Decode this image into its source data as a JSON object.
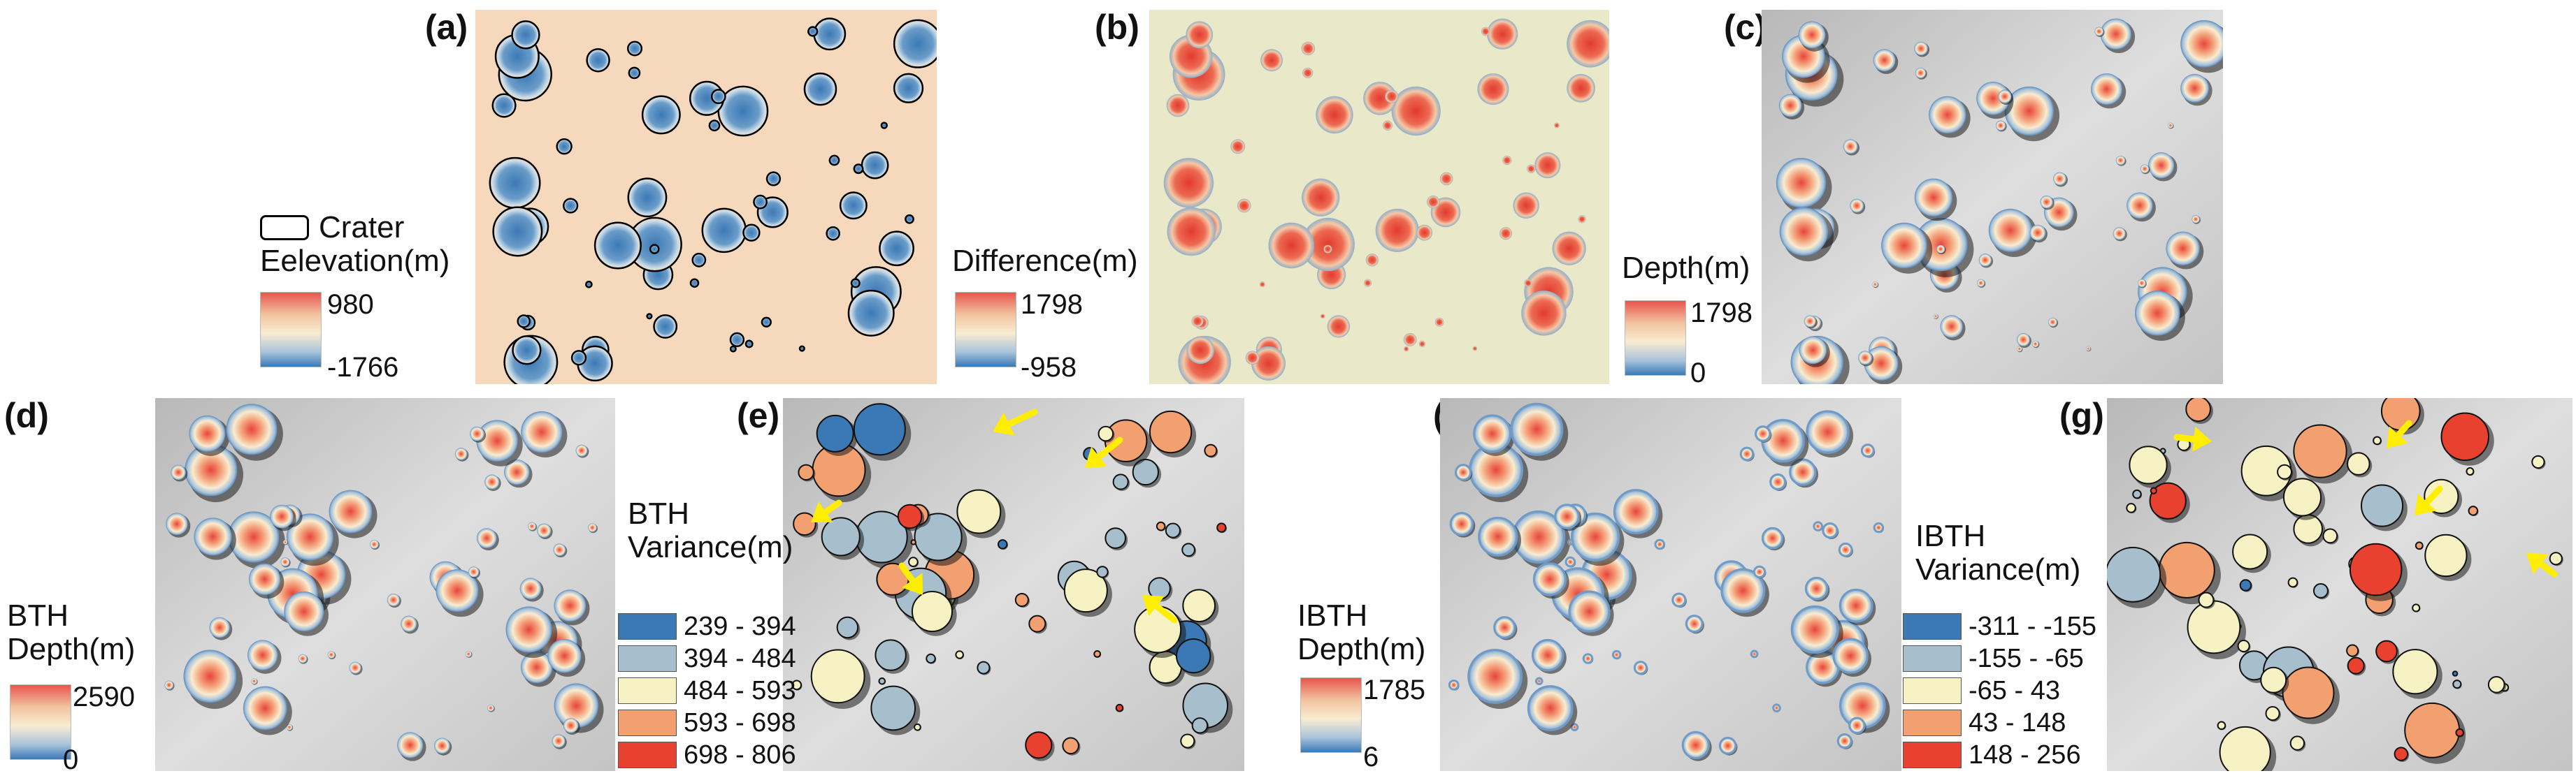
{
  "panels": {
    "a": {
      "label": "(a)"
    },
    "b": {
      "label": "(b)"
    },
    "c": {
      "label": "(c)"
    },
    "d": {
      "label": "(d)"
    },
    "e": {
      "label": "(e)"
    },
    "f": {
      "label": "(f)"
    },
    "g": {
      "label": "(g)"
    }
  },
  "legend_a": {
    "crater_label": "Crater",
    "title": "Eelevation(m)",
    "max": "980",
    "min": "-1766",
    "ramp_colors": [
      "#e8554e",
      "#f2c4a0",
      "#f8ecd0",
      "#a9c4dc",
      "#3b79b6"
    ]
  },
  "legend_b": {
    "title": "Difference(m)",
    "max": "1798",
    "min": "-958",
    "ramp_colors": [
      "#e8554e",
      "#f2c4a0",
      "#f8ecd0",
      "#a9c4dc",
      "#3b79b6"
    ]
  },
  "legend_c": {
    "title": "Depth(m)",
    "max": "1798",
    "min": "0",
    "ramp_colors": [
      "#e8554e",
      "#f2c4a0",
      "#f8ecd0",
      "#a9c4dc",
      "#3b79b6"
    ]
  },
  "legend_d": {
    "title_line1": "BTH",
    "title_line2": "Depth(m)",
    "max": "2590",
    "min": "0",
    "ramp_colors": [
      "#e8554e",
      "#f2c4a0",
      "#f8ecd0",
      "#a9c4dc",
      "#3b79b6"
    ]
  },
  "legend_e": {
    "title_line1": "BTH",
    "title_line2": "Variance(m)",
    "classes": [
      {
        "label": "239 - 394",
        "color": "#3b79b6"
      },
      {
        "label": "394 - 484",
        "color": "#a7bfcc"
      },
      {
        "label": "484 - 593",
        "color": "#f7f2c3"
      },
      {
        "label": "593 - 698",
        "color": "#f3a070"
      },
      {
        "label": "698 - 806",
        "color": "#e8412f"
      }
    ]
  },
  "legend_f": {
    "title_line1": "IBTH",
    "title_line2": "Depth(m)",
    "max": "1785",
    "min": "6",
    "ramp_colors": [
      "#e8554e",
      "#f2c4a0",
      "#f8ecd0",
      "#a9c4dc",
      "#3b79b6"
    ]
  },
  "legend_g": {
    "title_line1": "IBTH",
    "title_line2": "Variance(m)",
    "classes": [
      {
        "label": "-311 - -155",
        "color": "#3b79b6"
      },
      {
        "label": "-155 - -65",
        "color": "#a7bfcc"
      },
      {
        "label": "-65 - 43",
        "color": "#f7f2c3"
      },
      {
        "label": "43 - 148",
        "color": "#f3a070"
      },
      {
        "label": "148 - 256",
        "color": "#e8412f"
      }
    ]
  }
}
